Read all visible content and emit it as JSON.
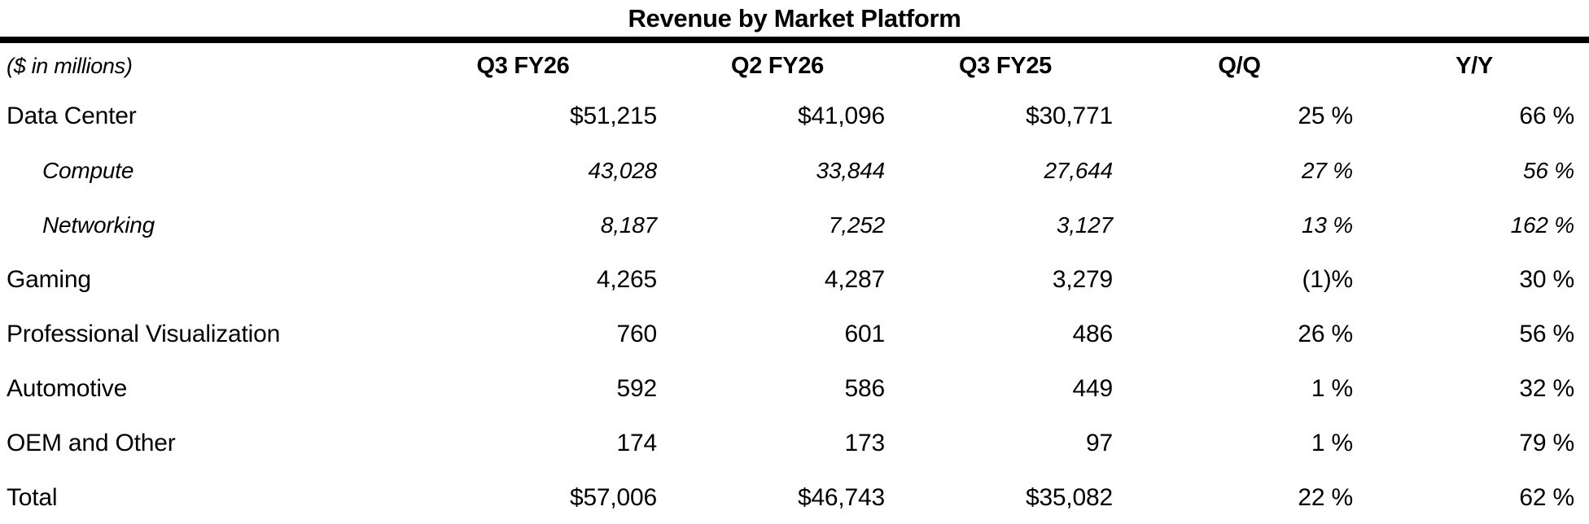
{
  "title": "Revenue by Market Platform",
  "unit_note": "($ in millions)",
  "columns": [
    "Q3 FY26",
    "Q2 FY26",
    "Q3 FY25",
    "Q/Q",
    "Y/Y"
  ],
  "rows": [
    {
      "label": "Data Center",
      "style": "main",
      "values": [
        "$51,215",
        "$41,096",
        "$30,771",
        "25 %",
        "66 %"
      ]
    },
    {
      "label": "Compute",
      "style": "sub",
      "values": [
        "43,028",
        "33,844",
        "27,644",
        "27 %",
        "56 %"
      ]
    },
    {
      "label": "Networking",
      "style": "sub",
      "values": [
        "8,187",
        "7,252",
        "3,127",
        "13 %",
        "162 %"
      ]
    },
    {
      "label": "Gaming",
      "style": "main",
      "values": [
        "4,265",
        "4,287",
        "3,279",
        "(1)%",
        "30 %"
      ]
    },
    {
      "label": "Professional Visualization",
      "style": "main",
      "values": [
        "760",
        "601",
        "486",
        "26 %",
        "56 %"
      ]
    },
    {
      "label": "Automotive",
      "style": "main",
      "values": [
        "592",
        "586",
        "449",
        "1 %",
        "32 %"
      ]
    },
    {
      "label": "OEM and Other",
      "style": "main",
      "values": [
        "174",
        "173",
        "97",
        "1 %",
        "79 %"
      ]
    },
    {
      "label": "Total",
      "style": "total",
      "values": [
        "$57,006",
        "$46,743",
        "$35,082",
        "22 %",
        "62 %"
      ]
    }
  ],
  "colors": {
    "text": "#000000",
    "background": "#ffffff",
    "rule": "#000000"
  }
}
